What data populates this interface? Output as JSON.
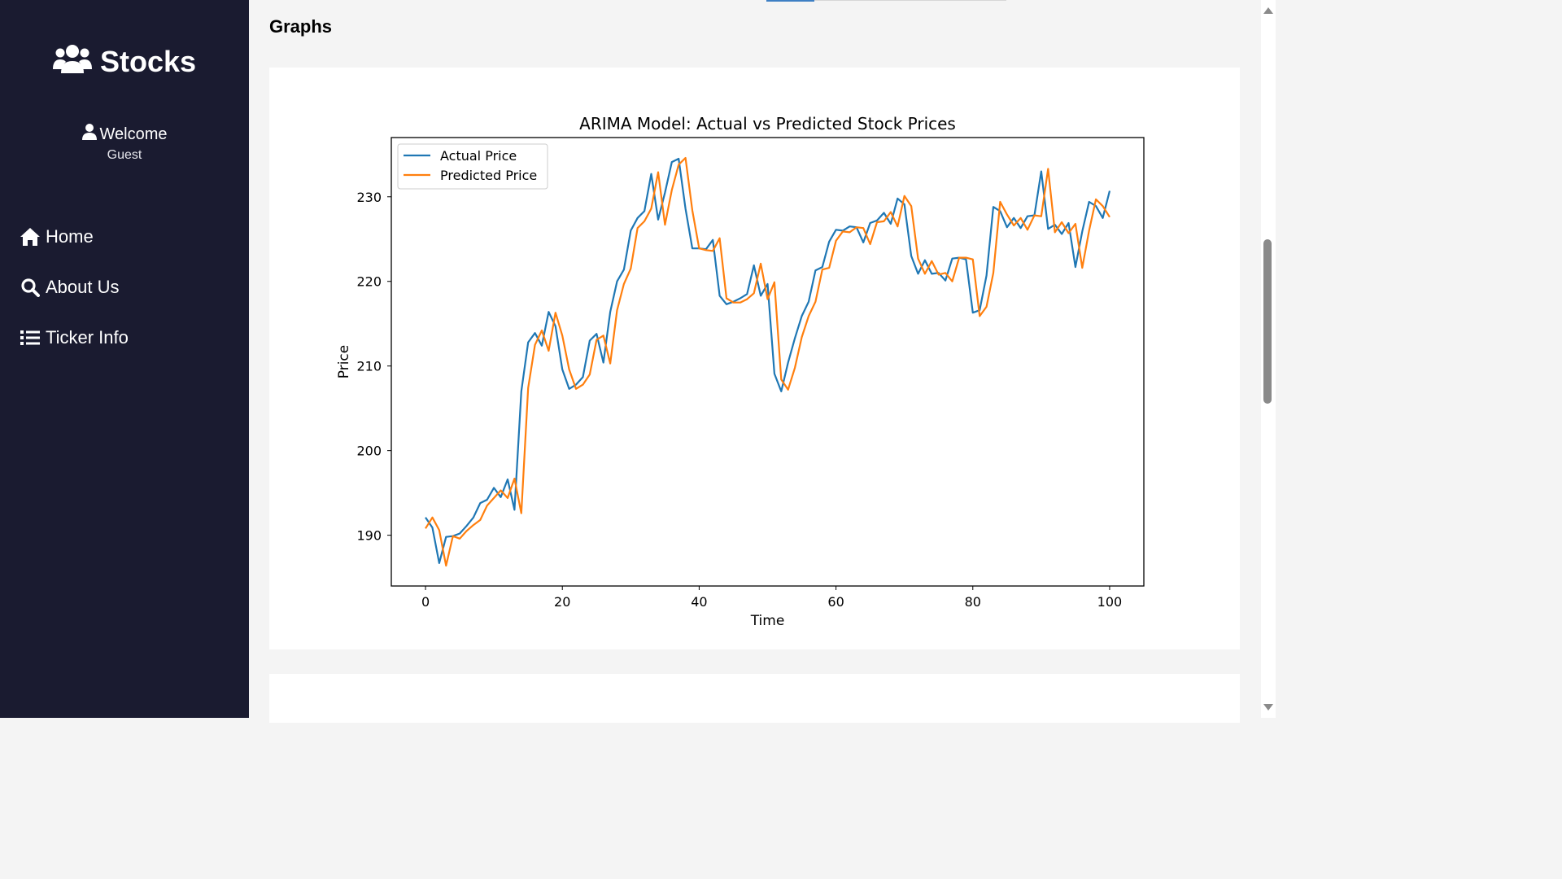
{
  "sidebar": {
    "brand_title": "Stocks",
    "brand_icon": "users-icon",
    "welcome_label": "Welcome",
    "user_name": "Guest",
    "nav": [
      {
        "label": "Home",
        "icon": "home-icon"
      },
      {
        "label": "About Us",
        "icon": "search-icon"
      },
      {
        "label": "Ticker Info",
        "icon": "list-icon"
      }
    ]
  },
  "main": {
    "section_title": "Graphs"
  },
  "colors": {
    "sidebar_bg": "#1a1b30",
    "actual": "#1f77b4",
    "predicted": "#ff7f0e"
  },
  "chart_data": {
    "type": "line",
    "title": "ARIMA Model: Actual vs Predicted Stock Prices",
    "xlabel": "Time",
    "ylabel": "Price",
    "xlim": [
      -5,
      105
    ],
    "ylim": [
      184,
      237
    ],
    "xticks": [
      0,
      20,
      40,
      60,
      80,
      100
    ],
    "yticks": [
      190,
      200,
      210,
      220,
      230
    ],
    "legend_position": "top-left",
    "grid": false,
    "series": [
      {
        "name": "Actual Price",
        "x": [
          0,
          1,
          2,
          3,
          4,
          5,
          6,
          7,
          8,
          9,
          10,
          11,
          12,
          13,
          14,
          15,
          16,
          17,
          18,
          19,
          20,
          21,
          22,
          23,
          24,
          25,
          26,
          27,
          28,
          29,
          30,
          31,
          32,
          33,
          34,
          35,
          36,
          37,
          38,
          39,
          40,
          41,
          42,
          43,
          44,
          45,
          46,
          47,
          48,
          49,
          50,
          51,
          52,
          53,
          54,
          55,
          56,
          57,
          58,
          59,
          60,
          61,
          62,
          63,
          64,
          65,
          66,
          67,
          68,
          69,
          70,
          71,
          72,
          73,
          74,
          75,
          76,
          77,
          78,
          79,
          80,
          81,
          82,
          83,
          84,
          85,
          86,
          87,
          88,
          89,
          90,
          91,
          92,
          93,
          94,
          95,
          96,
          97,
          98,
          99,
          100
        ],
        "values": [
          192.1,
          190.9,
          186.7,
          189.8,
          189.9,
          190.2,
          191.1,
          192.1,
          193.8,
          194.2,
          195.6,
          194.5,
          196.6,
          193.0,
          207.0,
          212.8,
          213.9,
          212.4,
          216.4,
          214.7,
          209.6,
          207.3,
          207.8,
          208.7,
          213.0,
          213.8,
          210.4,
          216.4,
          220.0,
          221.4,
          226.0,
          227.5,
          228.3,
          232.7,
          227.3,
          230.5,
          234.1,
          234.5,
          228.6,
          223.9,
          223.9,
          223.8,
          224.9,
          218.3,
          217.3,
          217.6,
          218.0,
          218.5,
          221.9,
          218.3,
          219.7,
          209.1,
          207.0,
          210.4,
          213.3,
          215.9,
          217.6,
          221.3,
          221.7,
          224.7,
          226.1,
          226.0,
          226.5,
          226.4,
          224.6,
          226.9,
          227.2,
          228.1,
          226.8,
          229.8,
          229.1,
          223.0,
          220.9,
          222.5,
          220.9,
          221.0,
          220.1,
          222.7,
          222.8,
          222.6,
          216.3,
          216.6,
          220.7,
          228.8,
          228.3,
          226.4,
          227.5,
          226.3,
          227.7,
          227.8,
          233.0,
          226.2,
          226.7,
          225.6,
          226.9,
          221.7,
          225.9,
          229.4,
          228.9,
          227.5,
          230.7
        ]
      },
      {
        "name": "Predicted Price",
        "x": [
          0,
          1,
          2,
          3,
          4,
          5,
          6,
          7,
          8,
          9,
          10,
          11,
          12,
          13,
          14,
          15,
          16,
          17,
          18,
          19,
          20,
          21,
          22,
          23,
          24,
          25,
          26,
          27,
          28,
          29,
          30,
          31,
          32,
          33,
          34,
          35,
          36,
          37,
          38,
          39,
          40,
          41,
          42,
          43,
          44,
          45,
          46,
          47,
          48,
          49,
          50,
          51,
          52,
          53,
          54,
          55,
          56,
          57,
          58,
          59,
          60,
          61,
          62,
          63,
          64,
          65,
          66,
          67,
          68,
          69,
          70,
          71,
          72,
          73,
          74,
          75,
          76,
          77,
          78,
          79,
          80,
          81,
          82,
          83,
          84,
          85,
          86,
          87,
          88,
          89,
          90,
          91,
          92,
          93,
          94,
          95,
          96,
          97,
          98,
          99,
          100
        ],
        "values": [
          190.8,
          192.1,
          190.6,
          186.4,
          189.9,
          189.6,
          190.5,
          191.2,
          191.8,
          193.5,
          194.4,
          195.3,
          194.4,
          196.7,
          192.6,
          207.4,
          212.5,
          214.2,
          211.8,
          216.3,
          213.6,
          209.6,
          207.3,
          207.8,
          209.0,
          213.1,
          213.6,
          210.3,
          216.6,
          219.7,
          221.5,
          226.3,
          227.1,
          228.6,
          232.9,
          226.7,
          230.8,
          233.8,
          234.6,
          228.4,
          223.9,
          223.7,
          223.6,
          225.1,
          218.0,
          217.5,
          217.5,
          217.9,
          218.6,
          222.1,
          217.9,
          219.9,
          208.4,
          207.2,
          209.8,
          213.4,
          215.9,
          217.6,
          221.4,
          221.6,
          224.8,
          225.9,
          225.8,
          226.4,
          226.3,
          224.4,
          227.0,
          227.1,
          228.2,
          226.5,
          230.1,
          228.9,
          222.7,
          220.9,
          222.4,
          220.8,
          221.0,
          220.0,
          222.8,
          222.8,
          222.6,
          215.9,
          217.0,
          221.0,
          229.4,
          227.9,
          226.6,
          227.5,
          226.1,
          227.8,
          227.7,
          233.3,
          225.8,
          227.0,
          225.7,
          226.8,
          221.6,
          226.0,
          229.7,
          228.9,
          227.6
        ]
      }
    ]
  }
}
